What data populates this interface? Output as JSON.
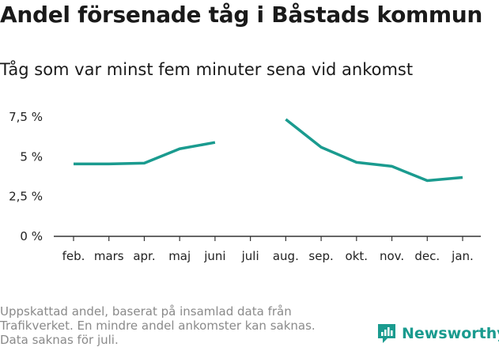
{
  "header": {
    "title": "Andel försenade tåg i Båstads kommun",
    "subtitle": "Tåg som var minst fem minuter sena vid ankomst"
  },
  "footnote": {
    "lines": [
      "Uppskattad andel, baserat på insamlad data från",
      "Trafikverket. En mindre andel ankomster kan saknas.",
      "Data saknas för juli."
    ]
  },
  "brand": {
    "name": "Newsworthy",
    "color": "#1a9b8f",
    "icon": "newsworthy-chart-icon"
  },
  "chart_data": {
    "type": "line",
    "categories": [
      "feb.",
      "mars",
      "apr.",
      "maj",
      "juni",
      "juli",
      "aug.",
      "sep.",
      "okt.",
      "nov.",
      "dec.",
      "jan."
    ],
    "series": [
      {
        "values": [
          4.55,
          4.55,
          4.6,
          5.5,
          5.9,
          null,
          7.35,
          5.6,
          4.65,
          4.4,
          3.5,
          3.7
        ]
      }
    ],
    "ylim": [
      0,
      7.5
    ],
    "yticks": [
      0,
      2.5,
      5,
      7.5
    ],
    "ytick_labels": [
      "0 %",
      "2,5 %",
      "5 %",
      "7,5 %"
    ],
    "grid": false,
    "line_color": "#1a9b8f",
    "title": "",
    "xlabel": "",
    "ylabel": ""
  }
}
